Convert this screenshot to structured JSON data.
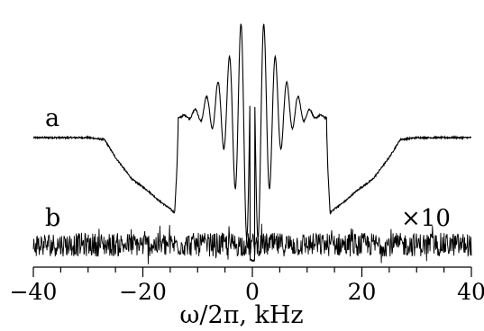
{
  "chart_data": {
    "type": "line",
    "xlabel": "ω/2π, kHz",
    "xlim": [
      -40,
      40
    ],
    "xticks": [
      -40,
      -20,
      0,
      20,
      40
    ],
    "xtick_labels": [
      "−40",
      "−20",
      "0",
      "20",
      "40"
    ],
    "minor_tick_step": 5,
    "grid": false,
    "series": [
      {
        "name": "a",
        "x": [
          -40,
          -30,
          -27,
          -25,
          -22,
          -19,
          -17,
          -15,
          -14.2,
          -13.8,
          -13.5,
          -12,
          -10,
          -8,
          -6,
          -4,
          -2,
          -1,
          0,
          1,
          2,
          4,
          6,
          8,
          10,
          12,
          13.5,
          13.8,
          14.2,
          15,
          17,
          19,
          22,
          25,
          27,
          30,
          40
        ],
        "y": [
          0.0,
          0.0,
          -0.01,
          -0.1,
          -0.21,
          -0.27,
          -0.32,
          -0.36,
          -0.38,
          -0.17,
          0.1,
          0.12,
          0.16,
          0.22,
          0.3,
          0.45,
          0.62,
          0.65,
          -0.62,
          0.65,
          0.62,
          0.45,
          0.3,
          0.22,
          0.16,
          0.12,
          0.1,
          -0.17,
          -0.38,
          -0.36,
          -0.32,
          -0.27,
          -0.21,
          -0.1,
          -0.01,
          0.0,
          0.0
        ]
      },
      {
        "name": "b",
        "scale_label": "×10",
        "x": [
          -40,
          40
        ],
        "y": [
          0,
          0
        ],
        "noise_amplitude": 0.06
      }
    ]
  }
}
